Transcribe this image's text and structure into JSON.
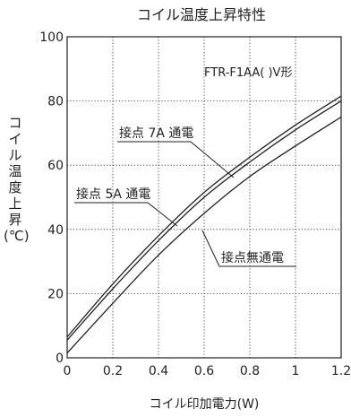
{
  "chart_data": {
    "type": "line",
    "title": "コイル温度上昇特性",
    "subtitle": "FTR-F1AA( )V形",
    "xlabel": "コイル印加電力(W)",
    "ylabel_chars": [
      "コ",
      "イ",
      "ル",
      "温",
      "度",
      "上",
      "昇"
    ],
    "ylabel_unit": "(℃)",
    "xlim": [
      0,
      1.2
    ],
    "ylim": [
      0,
      100
    ],
    "xticks": [
      "0",
      "0.2",
      "0.4",
      "0.6",
      "0.8",
      "1",
      "1.2"
    ],
    "yticks": [
      "0",
      "20",
      "40",
      "60",
      "80",
      "100"
    ],
    "grid": true,
    "series": [
      {
        "name": "接点 7A 通電",
        "x": [
          0,
          0.2,
          0.4,
          0.6,
          0.8,
          1.0,
          1.2
        ],
        "y": [
          6.5,
          23,
          38,
          51.5,
          62.5,
          72.5,
          81.5
        ]
      },
      {
        "name": "接点 5A 通電",
        "x": [
          0,
          0.2,
          0.4,
          0.6,
          0.8,
          1.0,
          1.2
        ],
        "y": [
          5.5,
          21.5,
          36.5,
          50,
          61,
          71,
          80
        ]
      },
      {
        "name": "接点無通電",
        "x": [
          0,
          0.2,
          0.4,
          0.6,
          0.8,
          1.0,
          1.2
        ],
        "y": [
          1.5,
          17,
          32,
          45,
          56.5,
          66,
          75
        ]
      }
    ]
  }
}
